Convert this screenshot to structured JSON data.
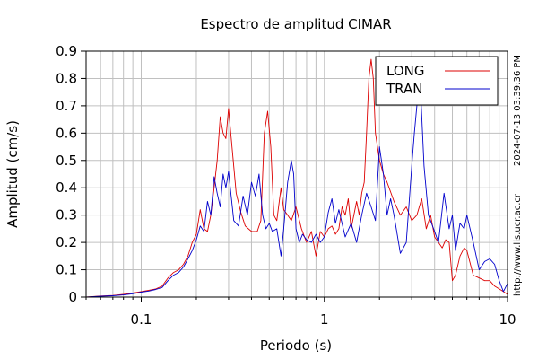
{
  "chart_data": {
    "type": "line",
    "title": "Espectro de amplitud CIMAR",
    "xlabel": "Periodo (s)",
    "ylabel": "Amplitud (cm/s)",
    "x_scale": "log",
    "xlim": [
      0.05,
      10
    ],
    "ylim": [
      0,
      0.9
    ],
    "grid": true,
    "legend_position": "top-right",
    "x_tick_labels": [
      "0.1",
      "1",
      "10"
    ],
    "y_tick_labels": [
      "0",
      "0.1",
      "0.2",
      "0.3",
      "0.4",
      "0.5",
      "0.6",
      "0.7",
      "0.8",
      "0.9"
    ],
    "x_tick_values": [
      0.1,
      1,
      10
    ],
    "y_tick_values": [
      0,
      0.1,
      0.2,
      0.3,
      0.4,
      0.5,
      0.6,
      0.7,
      0.8,
      0.9
    ],
    "side_annotations": {
      "timestamp": "2024-07-13 03:39:36 PM",
      "url": "http://www.lis.ucr.ac.cr"
    },
    "series": [
      {
        "name": "LONG",
        "color": "#dd0000",
        "x": [
          0.05,
          0.06,
          0.07,
          0.08,
          0.09,
          0.1,
          0.11,
          0.12,
          0.13,
          0.14,
          0.15,
          0.16,
          0.17,
          0.18,
          0.19,
          0.2,
          0.21,
          0.22,
          0.23,
          0.24,
          0.25,
          0.26,
          0.27,
          0.28,
          0.29,
          0.3,
          0.31,
          0.33,
          0.35,
          0.37,
          0.4,
          0.43,
          0.45,
          0.47,
          0.49,
          0.51,
          0.53,
          0.55,
          0.58,
          0.6,
          0.63,
          0.66,
          0.7,
          0.75,
          0.8,
          0.85,
          0.9,
          0.95,
          1.0,
          1.05,
          1.1,
          1.15,
          1.2,
          1.25,
          1.3,
          1.35,
          1.4,
          1.5,
          1.55,
          1.6,
          1.65,
          1.7,
          1.75,
          1.8,
          1.85,
          1.9,
          2.0,
          2.1,
          2.2,
          2.4,
          2.6,
          2.8,
          3.0,
          3.2,
          3.4,
          3.6,
          3.8,
          4.0,
          4.2,
          4.4,
          4.6,
          4.8,
          5.0,
          5.2,
          5.5,
          5.8,
          6.0,
          6.5,
          7.0,
          7.5,
          8.0,
          8.5,
          9.0,
          9.5,
          10.0
        ],
        "y": [
          0.0,
          0.004,
          0.006,
          0.01,
          0.015,
          0.02,
          0.025,
          0.03,
          0.04,
          0.07,
          0.09,
          0.1,
          0.12,
          0.15,
          0.2,
          0.23,
          0.32,
          0.25,
          0.24,
          0.3,
          0.4,
          0.5,
          0.66,
          0.6,
          0.58,
          0.69,
          0.58,
          0.38,
          0.31,
          0.26,
          0.24,
          0.24,
          0.28,
          0.6,
          0.68,
          0.55,
          0.3,
          0.28,
          0.4,
          0.32,
          0.3,
          0.28,
          0.33,
          0.25,
          0.2,
          0.24,
          0.15,
          0.24,
          0.22,
          0.25,
          0.26,
          0.23,
          0.25,
          0.33,
          0.3,
          0.36,
          0.25,
          0.35,
          0.3,
          0.38,
          0.42,
          0.6,
          0.8,
          0.87,
          0.8,
          0.6,
          0.5,
          0.45,
          0.42,
          0.35,
          0.3,
          0.33,
          0.28,
          0.3,
          0.36,
          0.25,
          0.3,
          0.22,
          0.2,
          0.18,
          0.21,
          0.2,
          0.06,
          0.08,
          0.15,
          0.18,
          0.17,
          0.08,
          0.07,
          0.06,
          0.06,
          0.04,
          0.03,
          0.02,
          0.01
        ]
      },
      {
        "name": "TRAN",
        "color": "#0000cc",
        "x": [
          0.05,
          0.06,
          0.07,
          0.08,
          0.09,
          0.1,
          0.11,
          0.12,
          0.13,
          0.14,
          0.15,
          0.16,
          0.17,
          0.18,
          0.19,
          0.2,
          0.21,
          0.22,
          0.23,
          0.24,
          0.25,
          0.26,
          0.27,
          0.28,
          0.29,
          0.3,
          0.32,
          0.34,
          0.36,
          0.38,
          0.4,
          0.42,
          0.44,
          0.46,
          0.48,
          0.5,
          0.52,
          0.55,
          0.58,
          0.6,
          0.63,
          0.66,
          0.68,
          0.7,
          0.73,
          0.76,
          0.8,
          0.85,
          0.9,
          0.95,
          1.0,
          1.05,
          1.1,
          1.15,
          1.2,
          1.3,
          1.4,
          1.5,
          1.6,
          1.7,
          1.8,
          1.9,
          2.0,
          2.1,
          2.2,
          2.3,
          2.4,
          2.6,
          2.8,
          3.0,
          3.1,
          3.2,
          3.3,
          3.5,
          3.7,
          4.0,
          4.2,
          4.5,
          4.8,
          5.0,
          5.2,
          5.5,
          5.8,
          6.0,
          6.5,
          7.0,
          7.5,
          8.0,
          8.5,
          9.0,
          9.5,
          10.0
        ],
        "y": [
          0.0,
          0.003,
          0.005,
          0.008,
          0.012,
          0.018,
          0.022,
          0.028,
          0.035,
          0.06,
          0.08,
          0.09,
          0.11,
          0.14,
          0.17,
          0.21,
          0.26,
          0.24,
          0.35,
          0.3,
          0.44,
          0.38,
          0.33,
          0.45,
          0.4,
          0.46,
          0.28,
          0.26,
          0.37,
          0.3,
          0.42,
          0.37,
          0.45,
          0.3,
          0.25,
          0.27,
          0.24,
          0.25,
          0.15,
          0.25,
          0.42,
          0.5,
          0.45,
          0.25,
          0.2,
          0.23,
          0.21,
          0.2,
          0.23,
          0.2,
          0.22,
          0.31,
          0.36,
          0.27,
          0.32,
          0.22,
          0.27,
          0.2,
          0.3,
          0.38,
          0.33,
          0.28,
          0.55,
          0.45,
          0.3,
          0.36,
          0.3,
          0.16,
          0.2,
          0.48,
          0.6,
          0.7,
          0.85,
          0.48,
          0.3,
          0.24,
          0.2,
          0.38,
          0.25,
          0.3,
          0.17,
          0.27,
          0.25,
          0.3,
          0.2,
          0.1,
          0.13,
          0.14,
          0.12,
          0.06,
          0.02,
          0.05
        ]
      }
    ]
  }
}
